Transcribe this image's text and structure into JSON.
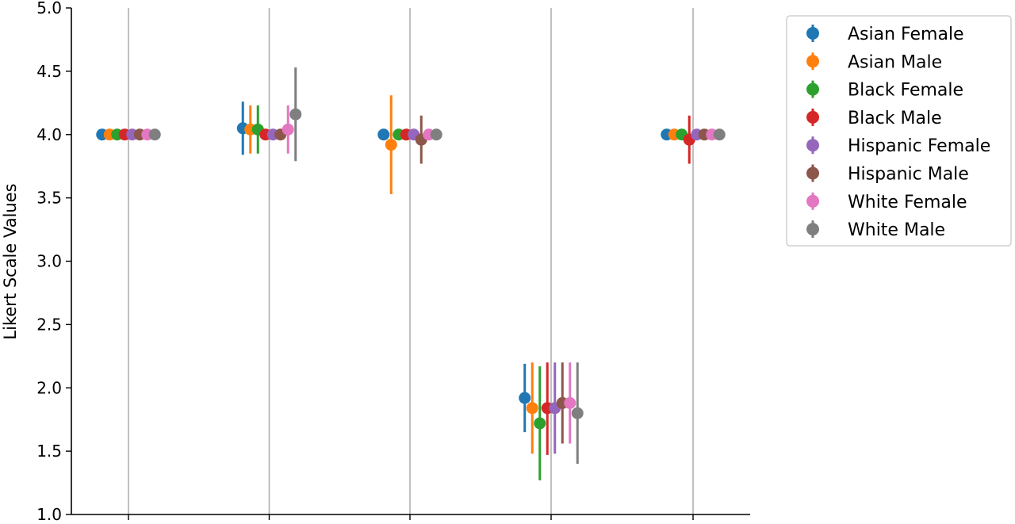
{
  "chart_data": {
    "type": "scatter",
    "ylabel": "Likert Scale Values",
    "ylim": [
      1.0,
      5.0
    ],
    "yticks": [
      "1.0",
      "1.5",
      "2.0",
      "2.5",
      "3.0",
      "3.5",
      "4.0",
      "4.5",
      "5.0"
    ],
    "categories": [
      "",
      "",
      "",
      "",
      ""
    ],
    "grid": "vertical",
    "legend_position": "upper right, outside plot",
    "series": [
      {
        "name": "Asian Female",
        "color": "#1f77b4",
        "values": [
          4.0,
          4.05,
          4.0,
          1.92,
          4.0
        ],
        "err_low": [
          4.0,
          3.84,
          4.0,
          1.65,
          4.0
        ],
        "err_high": [
          4.0,
          4.26,
          4.0,
          2.19,
          4.0
        ]
      },
      {
        "name": "Asian Male",
        "color": "#ff7f0e",
        "values": [
          4.0,
          4.04,
          3.92,
          1.84,
          4.0
        ],
        "err_low": [
          4.0,
          3.85,
          3.53,
          1.48,
          4.0
        ],
        "err_high": [
          4.0,
          4.23,
          4.31,
          2.2,
          4.0
        ]
      },
      {
        "name": "Black Female",
        "color": "#2ca02c",
        "values": [
          4.0,
          4.04,
          4.0,
          1.72,
          4.0
        ],
        "err_low": [
          4.0,
          3.85,
          4.0,
          1.27,
          4.0
        ],
        "err_high": [
          4.0,
          4.23,
          4.0,
          2.17,
          4.0
        ]
      },
      {
        "name": "Black Male",
        "color": "#d62728",
        "values": [
          4.0,
          4.0,
          4.0,
          1.84,
          3.96
        ],
        "err_low": [
          4.0,
          4.0,
          4.0,
          1.47,
          3.77
        ],
        "err_high": [
          4.0,
          4.0,
          4.0,
          2.2,
          4.15
        ]
      },
      {
        "name": "Hispanic Female",
        "color": "#9467bd",
        "values": [
          4.0,
          4.0,
          4.0,
          1.84,
          4.0
        ],
        "err_low": [
          4.0,
          4.0,
          4.0,
          1.48,
          4.0
        ],
        "err_high": [
          4.0,
          4.0,
          4.0,
          2.2,
          4.0
        ]
      },
      {
        "name": "Hispanic Male",
        "color": "#8c564b",
        "values": [
          4.0,
          4.0,
          3.96,
          1.88,
          4.0
        ],
        "err_low": [
          4.0,
          4.0,
          3.77,
          1.56,
          4.0
        ],
        "err_high": [
          4.0,
          4.0,
          4.15,
          2.2,
          4.0
        ]
      },
      {
        "name": "White Female",
        "color": "#e377c2",
        "values": [
          4.0,
          4.04,
          4.0,
          1.88,
          4.0
        ],
        "err_low": [
          4.0,
          3.85,
          4.0,
          1.56,
          4.0
        ],
        "err_high": [
          4.0,
          4.23,
          4.0,
          2.2,
          4.0
        ]
      },
      {
        "name": "White Male",
        "color": "#7f7f7f",
        "values": [
          4.0,
          4.16,
          4.0,
          1.8,
          4.0
        ],
        "err_low": [
          4.0,
          3.79,
          4.0,
          1.4,
          4.0
        ],
        "err_high": [
          4.0,
          4.53,
          4.0,
          2.2,
          4.0
        ]
      }
    ]
  }
}
